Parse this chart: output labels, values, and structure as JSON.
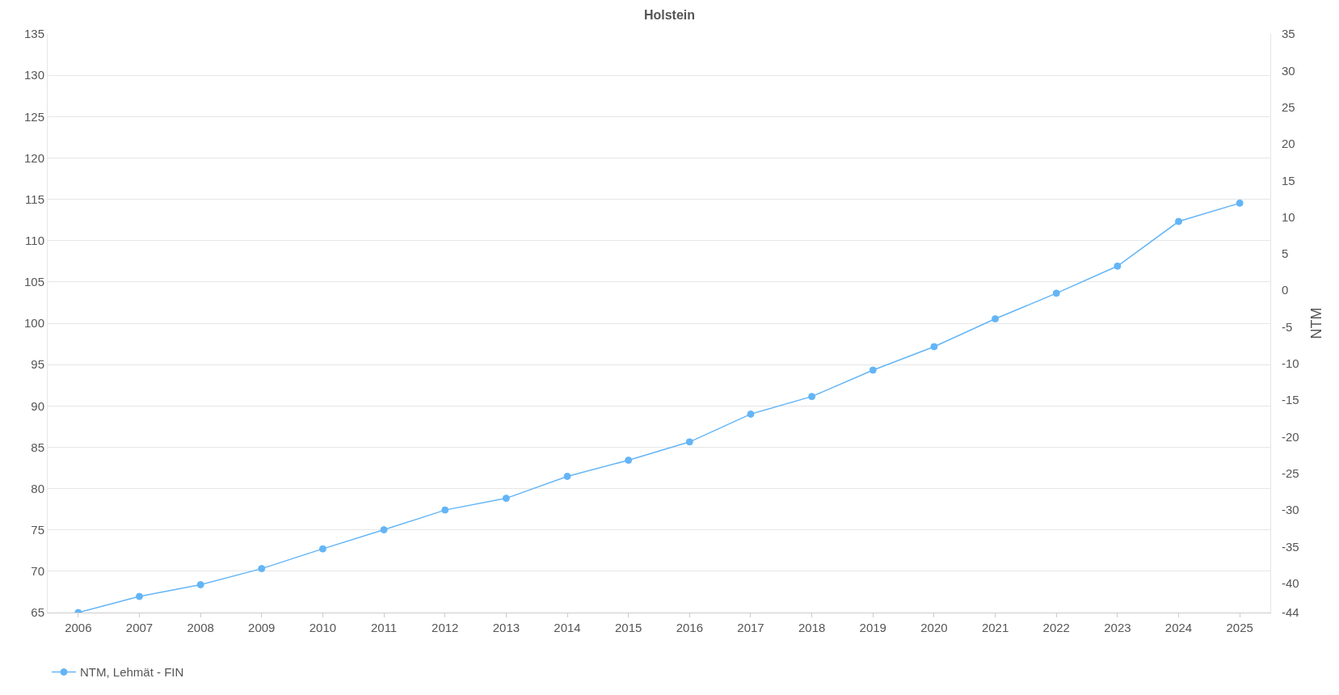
{
  "chart_data": {
    "type": "line",
    "title": "Holstein",
    "y2label": "NTM",
    "categories": [
      "2006",
      "2007",
      "2008",
      "2009",
      "2010",
      "2011",
      "2012",
      "2013",
      "2014",
      "2015",
      "2016",
      "2017",
      "2018",
      "2019",
      "2020",
      "2021",
      "2022",
      "2023",
      "2024",
      "2025"
    ],
    "series": [
      {
        "name": "NTM, Lehmät - FIN",
        "color": "#64b5f6",
        "axis": "y2",
        "values": [
          -44,
          -41.8,
          -40.2,
          -38,
          -35.3,
          -32.7,
          -30,
          -28.4,
          -25.4,
          -23.2,
          -20.7,
          -16.9,
          -14.5,
          -10.9,
          -7.7,
          -3.9,
          -0.4,
          3.3,
          9.4,
          11.9
        ]
      }
    ],
    "ylim": [
      65,
      135
    ],
    "yticks": [
      65,
      70,
      75,
      80,
      85,
      90,
      95,
      100,
      105,
      110,
      115,
      120,
      125,
      130,
      135
    ],
    "y2lim": [
      -44,
      35
    ],
    "y2ticks": [
      -44,
      -40,
      -35,
      -30,
      -25,
      -20,
      -15,
      -10,
      -5,
      0,
      5,
      10,
      15,
      20,
      25,
      30,
      35
    ],
    "grid": "y",
    "legend": "bottom left",
    "marker": "circle",
    "line_style": "solid"
  }
}
